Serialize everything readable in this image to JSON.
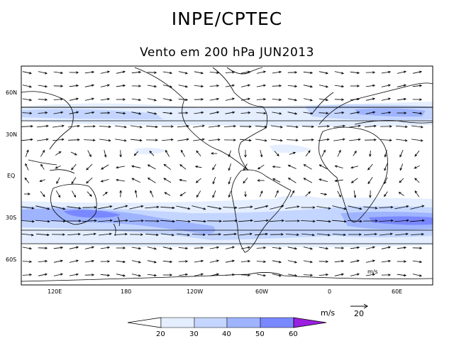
{
  "header": {
    "title": "INPE/CPTEC",
    "subtitle": "Vento em 200 hPa JUN2013"
  },
  "map": {
    "lat_labels": [
      "60N",
      "30N",
      "EQ",
      "30S",
      "60S"
    ],
    "lon_labels": [
      "120E",
      "180",
      "120W",
      "60W",
      "0",
      "60E"
    ],
    "inner_unit_label": "m/s"
  },
  "colorbar": {
    "ticks": [
      "20",
      "30",
      "40",
      "50",
      "60"
    ],
    "colors": [
      "#ffffff",
      "#e4eeff",
      "#c4d6ff",
      "#9fb4ff",
      "#7a88ff",
      "#4f55ee",
      "#9b1fe0"
    ],
    "units": "m/s",
    "reference_vector_label": "20"
  }
}
